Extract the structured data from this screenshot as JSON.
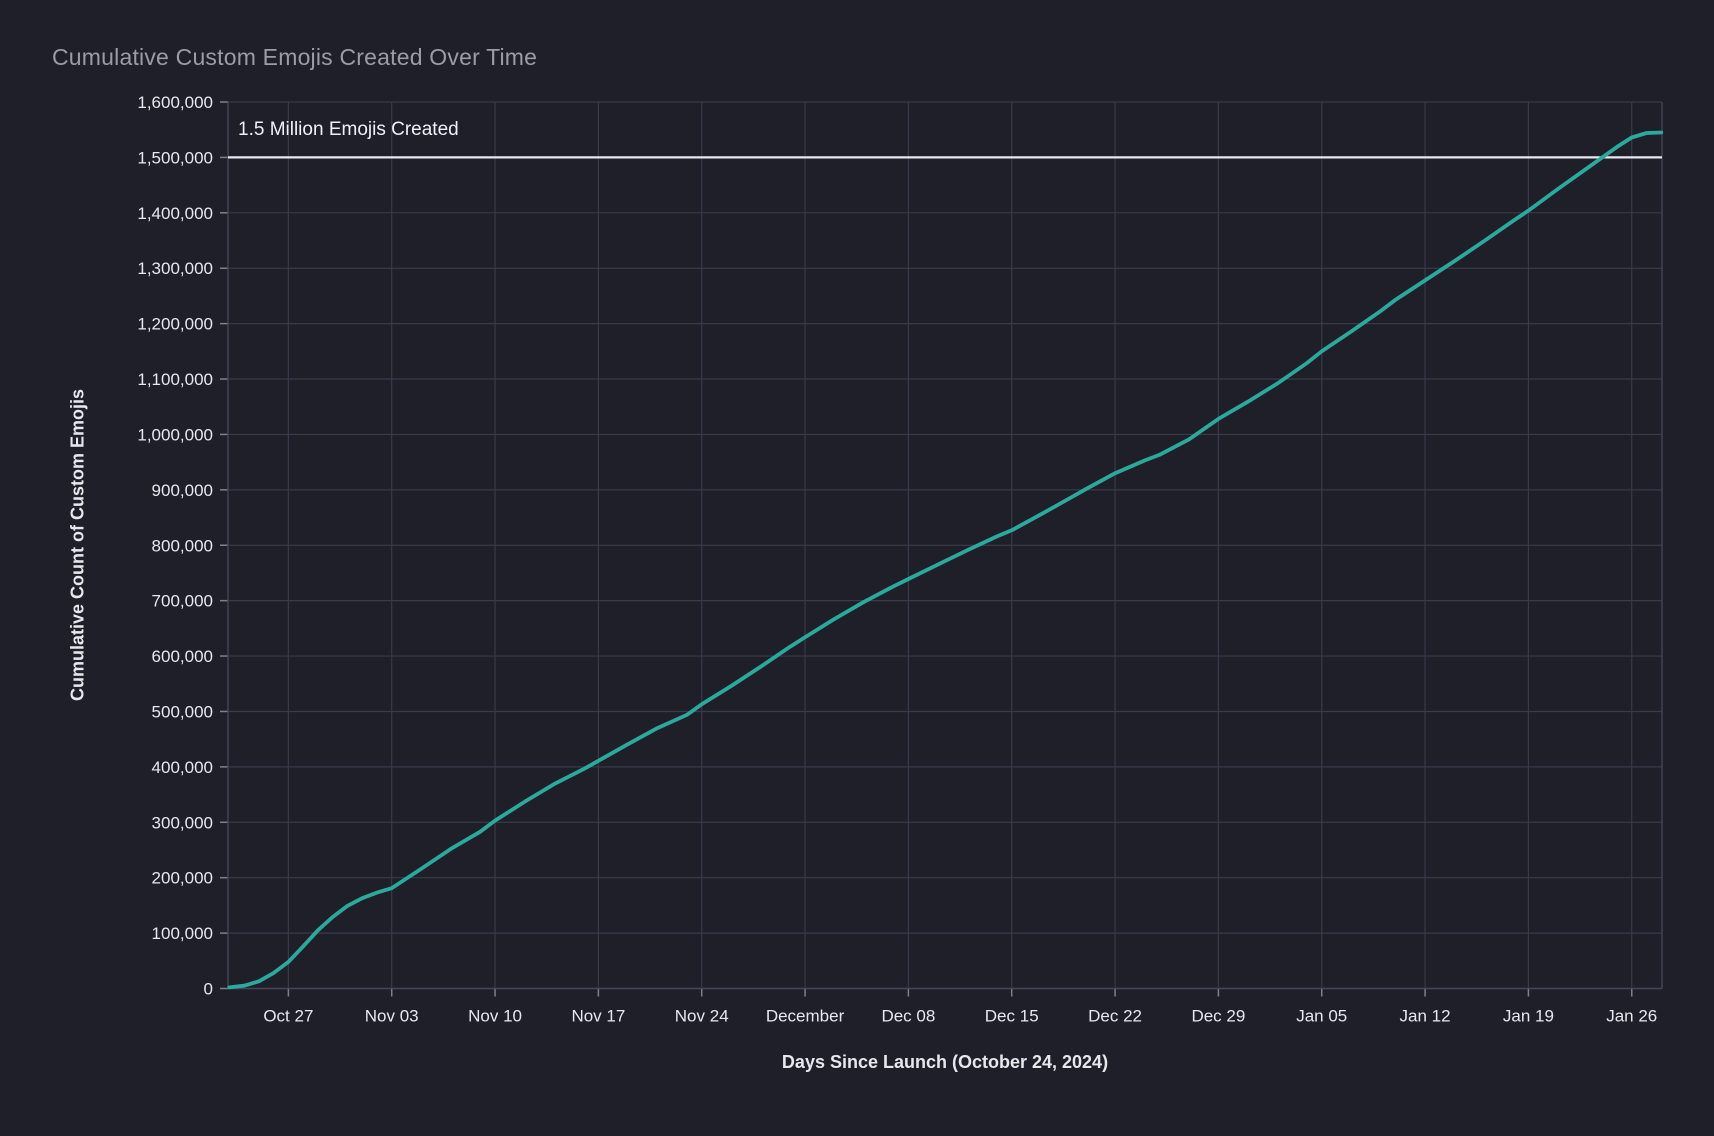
{
  "colors": {
    "background": "#1e1f29",
    "gridline": "#393a4a",
    "axis_border": "#444556",
    "tick_label": "#e7e7ed",
    "title_text": "#9b9ca7",
    "series_teal": "#2ca99d",
    "reference_line": "#e8e9f0"
  },
  "chart_data": {
    "type": "line",
    "title": "Cumulative Custom Emojis Created Over Time",
    "xlabel": "Days Since Launch (October 24, 2024)",
    "ylabel": "Cumulative Count of Custom Emojis",
    "grid": true,
    "legend": "none",
    "ylim": [
      0,
      1600000
    ],
    "y_tick_step": 100000,
    "y_ticks": [
      "0",
      "100,000",
      "200,000",
      "300,000",
      "400,000",
      "500,000",
      "600,000",
      "700,000",
      "800,000",
      "900,000",
      "1,000,000",
      "1,100,000",
      "1,200,000",
      "1,300,000",
      "1,400,000",
      "1,500,000",
      "1,600,000"
    ],
    "x_domain_days": [
      -1.09,
      96.05
    ],
    "x_ticks": [
      {
        "label": "Oct 27",
        "day": 3
      },
      {
        "label": "Nov 03",
        "day": 10
      },
      {
        "label": "Nov 10",
        "day": 17
      },
      {
        "label": "Nov 17",
        "day": 24
      },
      {
        "label": "Nov 24",
        "day": 31
      },
      {
        "label": "December",
        "day": 38
      },
      {
        "label": "Dec 08",
        "day": 45
      },
      {
        "label": "Dec 15",
        "day": 52
      },
      {
        "label": "Dec 22",
        "day": 59
      },
      {
        "label": "Dec 29",
        "day": 66
      },
      {
        "label": "Jan 05",
        "day": 73
      },
      {
        "label": "Jan 12",
        "day": 80
      },
      {
        "label": "Jan 19",
        "day": 87
      },
      {
        "label": "Jan 26",
        "day": 94
      }
    ],
    "reference_line": {
      "value": 1500000,
      "label": "1.5 Million Emojis Created"
    },
    "series": [
      {
        "name": "cumulative-custom-emojis",
        "color": "#2ca99d",
        "points": [
          {
            "date": "Oct 23",
            "day": -1,
            "value": 2000
          },
          {
            "date": "Oct 24",
            "day": 0,
            "value": 5000
          },
          {
            "date": "Oct 25",
            "day": 1,
            "value": 13000
          },
          {
            "date": "Oct 26",
            "day": 2,
            "value": 28000
          },
          {
            "date": "Oct 27",
            "day": 3,
            "value": 48000
          },
          {
            "date": "Oct 28",
            "day": 4,
            "value": 76000
          },
          {
            "date": "Oct 29",
            "day": 5,
            "value": 105000
          },
          {
            "date": "Oct 30",
            "day": 6,
            "value": 129000
          },
          {
            "date": "Oct 31",
            "day": 7,
            "value": 149000
          },
          {
            "date": "Nov 01",
            "day": 8,
            "value": 163000
          },
          {
            "date": "Nov 02",
            "day": 9,
            "value": 173000
          },
          {
            "date": "Nov 03",
            "day": 10,
            "value": 181000
          },
          {
            "date": "Nov 05",
            "day": 12,
            "value": 216000
          },
          {
            "date": "Nov 07",
            "day": 14,
            "value": 252000
          },
          {
            "date": "Nov 09",
            "day": 16,
            "value": 283000
          },
          {
            "date": "Nov 10",
            "day": 17,
            "value": 303000
          },
          {
            "date": "Nov 12",
            "day": 19,
            "value": 337000
          },
          {
            "date": "Nov 14",
            "day": 21,
            "value": 369000
          },
          {
            "date": "Nov 16",
            "day": 23,
            "value": 396000
          },
          {
            "date": "Nov 17",
            "day": 24,
            "value": 411000
          },
          {
            "date": "Nov 19",
            "day": 26,
            "value": 441000
          },
          {
            "date": "Nov 21",
            "day": 28,
            "value": 470000
          },
          {
            "date": "Nov 23",
            "day": 30,
            "value": 494000
          },
          {
            "date": "Nov 24",
            "day": 31,
            "value": 513000
          },
          {
            "date": "Nov 26",
            "day": 33,
            "value": 546000
          },
          {
            "date": "Nov 28",
            "day": 35,
            "value": 581000
          },
          {
            "date": "Nov 30",
            "day": 37,
            "value": 617000
          },
          {
            "date": "Dec 01",
            "day": 38,
            "value": 634000
          },
          {
            "date": "Dec 03",
            "day": 40,
            "value": 667000
          },
          {
            "date": "Dec 05",
            "day": 42,
            "value": 698000
          },
          {
            "date": "Dec 07",
            "day": 44,
            "value": 726000
          },
          {
            "date": "Dec 08",
            "day": 45,
            "value": 739000
          },
          {
            "date": "Dec 10",
            "day": 47,
            "value": 765000
          },
          {
            "date": "Dec 12",
            "day": 49,
            "value": 791000
          },
          {
            "date": "Dec 14",
            "day": 51,
            "value": 816000
          },
          {
            "date": "Dec 15",
            "day": 52,
            "value": 827000
          },
          {
            "date": "Dec 17",
            "day": 54,
            "value": 856000
          },
          {
            "date": "Dec 19",
            "day": 56,
            "value": 886000
          },
          {
            "date": "Dec 20",
            "day": 57,
            "value": 901000
          },
          {
            "date": "Dec 22",
            "day": 59,
            "value": 930000
          },
          {
            "date": "Dec 24",
            "day": 61,
            "value": 953000
          },
          {
            "date": "Dec 25",
            "day": 62,
            "value": 963000
          },
          {
            "date": "Dec 27",
            "day": 64,
            "value": 991000
          },
          {
            "date": "Dec 29",
            "day": 66,
            "value": 1028000
          },
          {
            "date": "Dec 31",
            "day": 68,
            "value": 1059000
          },
          {
            "date": "Jan 02",
            "day": 70,
            "value": 1092000
          },
          {
            "date": "Jan 04",
            "day": 72,
            "value": 1129000
          },
          {
            "date": "Jan 05",
            "day": 73,
            "value": 1150000
          },
          {
            "date": "Jan 07",
            "day": 75,
            "value": 1186000
          },
          {
            "date": "Jan 09",
            "day": 77,
            "value": 1223000
          },
          {
            "date": "Jan 10",
            "day": 78,
            "value": 1243000
          },
          {
            "date": "Jan 12",
            "day": 80,
            "value": 1278000
          },
          {
            "date": "Jan 14",
            "day": 82,
            "value": 1313000
          },
          {
            "date": "Jan 16",
            "day": 84,
            "value": 1349000
          },
          {
            "date": "Jan 18",
            "day": 86,
            "value": 1386000
          },
          {
            "date": "Jan 19",
            "day": 87,
            "value": 1404000
          },
          {
            "date": "Jan 21",
            "day": 89,
            "value": 1443000
          },
          {
            "date": "Jan 23",
            "day": 91,
            "value": 1481000
          },
          {
            "date": "Jan 25",
            "day": 93,
            "value": 1519000
          },
          {
            "date": "Jan 26",
            "day": 94,
            "value": 1536000
          },
          {
            "date": "Jan 27",
            "day": 95,
            "value": 1544000
          },
          {
            "date": "Jan 28",
            "day": 96,
            "value": 1545000
          }
        ]
      }
    ]
  }
}
